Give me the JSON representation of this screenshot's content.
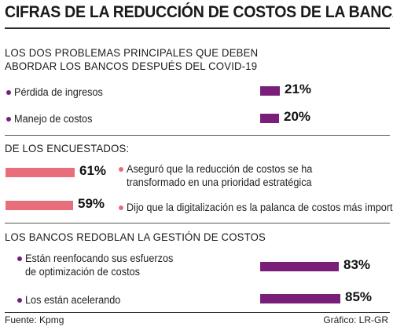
{
  "title": "CIFRAS DE LA REDUCCIÓN DE COSTOS DE LA BANCA",
  "sections": [
    {
      "title_lines": [
        "LOS DOS PROBLEMAS PRINCIPALES QUE DEBEN",
        "ABORDAR LOS BANCOS DESPUÉS DEL COVID-19"
      ],
      "items": [
        {
          "label_lines": [
            "Pérdida de ingresos"
          ],
          "value": 21,
          "value_label": "21%"
        },
        {
          "label_lines": [
            "Manejo de costos"
          ],
          "value": 20,
          "value_label": "20%"
        }
      ]
    },
    {
      "title_lines": [
        "DE LOS ENCUESTADOS:"
      ],
      "items": [
        {
          "label_lines": [
            "Aseguró que la reducción de costos se ha",
            "transformado en una prioridad estratégica"
          ],
          "value": 61,
          "value_label": "61%"
        },
        {
          "label_lines": [
            "Dijo que la digitalización es la palanca de costos más importante"
          ],
          "value": 59,
          "value_label": "59%"
        }
      ]
    },
    {
      "title_lines": [
        "LOS BANCOS REDOBLAN LA GESTIÓN DE COSTOS"
      ],
      "items": [
        {
          "label_lines": [
            "Están reenfocando sus esfuerzos",
            "de optimización de costos"
          ],
          "value": 83,
          "value_label": "83%"
        },
        {
          "label_lines": [
            "Los están acelerando"
          ],
          "value": 85,
          "value_label": "85%"
        }
      ]
    }
  ],
  "footer": {
    "source": "Fuente: Kpmg",
    "credit": "Gráfico: LR-GR"
  },
  "colors": {
    "purple": "#7a1f79",
    "pink": "#e86e7c"
  },
  "chart_data": {
    "type": "bar",
    "title": "CIFRAS DE LA REDUCCIÓN DE COSTOS DE LA BANCA",
    "unit": "%",
    "groups": [
      {
        "name": "LOS DOS PROBLEMAS PRINCIPALES QUE DEBEN ABORDAR LOS BANCOS DESPUÉS DEL COVID-19",
        "categories": [
          "Pérdida de ingresos",
          "Manejo de costos"
        ],
        "values": [
          21,
          20
        ]
      },
      {
        "name": "DE LOS ENCUESTADOS:",
        "categories": [
          "Aseguró que la reducción de costos se ha transformado en una prioridad estratégica",
          "Dijo que la digitalización es la palanca de costos más importante"
        ],
        "values": [
          61,
          59
        ]
      },
      {
        "name": "LOS BANCOS REDOBLAN LA GESTIÓN DE COSTOS",
        "categories": [
          "Están reenfocando sus esfuerzos de optimización de costos",
          "Los están acelerando"
        ],
        "values": [
          83,
          85
        ]
      }
    ]
  }
}
